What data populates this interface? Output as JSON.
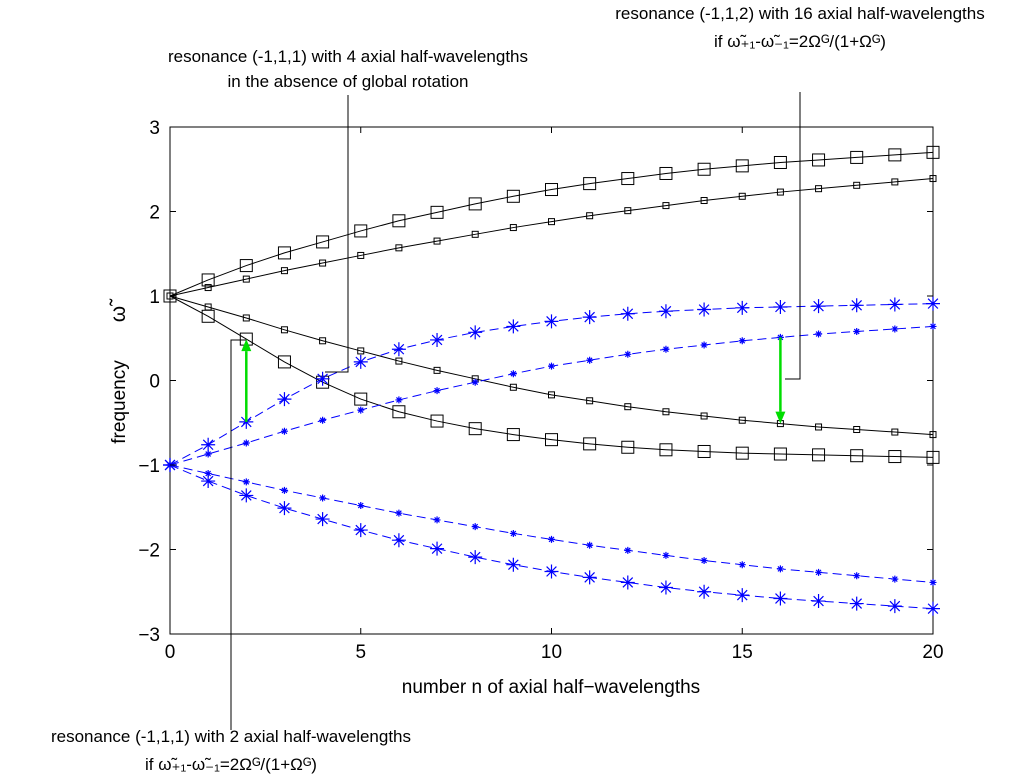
{
  "chart_data": {
    "type": "line",
    "title": "",
    "xlabel": "number n of axial half−wavelengths",
    "ylabel": "frequency",
    "ylabel_symbol": "ω̃",
    "xlim": [
      0,
      20
    ],
    "ylim": [
      -3,
      3
    ],
    "xticks": [
      "0",
      "5",
      "10",
      "15",
      "20"
    ],
    "yticks": [
      "−3",
      "−2",
      "−1",
      "0",
      "1",
      "2",
      "3"
    ],
    "grid": false,
    "legend": "none",
    "x": [
      0,
      1,
      2,
      3,
      4,
      5,
      6,
      7,
      8,
      9,
      10,
      11,
      12,
      13,
      14,
      15,
      16,
      17,
      18,
      19,
      20
    ],
    "series": [
      {
        "color": "#000000",
        "marker": "square-large",
        "line": "solid",
        "values": [
          1.0,
          1.19,
          1.36,
          1.51,
          1.64,
          1.77,
          1.89,
          1.99,
          2.09,
          2.18,
          2.26,
          2.33,
          2.39,
          2.45,
          2.5,
          2.54,
          2.58,
          2.61,
          2.64,
          2.67,
          2.7
        ]
      },
      {
        "color": "#000000",
        "marker": "square-small",
        "line": "solid",
        "values": [
          1.0,
          1.1,
          1.2,
          1.3,
          1.39,
          1.48,
          1.57,
          1.65,
          1.73,
          1.81,
          1.88,
          1.95,
          2.01,
          2.07,
          2.13,
          2.18,
          2.23,
          2.27,
          2.31,
          2.35,
          2.39
        ]
      },
      {
        "color": "#000000",
        "marker": "square-large",
        "line": "solid",
        "values": [
          1.0,
          0.76,
          0.49,
          0.22,
          -0.02,
          -0.22,
          -0.37,
          -0.48,
          -0.57,
          -0.64,
          -0.7,
          -0.75,
          -0.79,
          -0.82,
          -0.84,
          -0.86,
          -0.87,
          -0.88,
          -0.89,
          -0.9,
          -0.91
        ]
      },
      {
        "color": "#000000",
        "marker": "square-small",
        "line": "solid",
        "values": [
          1.0,
          0.87,
          0.74,
          0.6,
          0.47,
          0.35,
          0.23,
          0.12,
          0.02,
          -0.08,
          -0.17,
          -0.24,
          -0.31,
          -0.37,
          -0.42,
          -0.47,
          -0.51,
          -0.55,
          -0.58,
          -0.61,
          -0.64
        ]
      },
      {
        "color": "#0000ff",
        "marker": "star-large",
        "line": "dashed",
        "values": [
          -1.0,
          -0.76,
          -0.49,
          -0.22,
          0.02,
          0.22,
          0.37,
          0.48,
          0.57,
          0.64,
          0.7,
          0.75,
          0.79,
          0.82,
          0.84,
          0.86,
          0.87,
          0.88,
          0.89,
          0.9,
          0.91
        ]
      },
      {
        "color": "#0000ff",
        "marker": "star-small",
        "line": "dashed",
        "values": [
          -1.0,
          -0.87,
          -0.74,
          -0.6,
          -0.47,
          -0.35,
          -0.23,
          -0.12,
          -0.02,
          0.08,
          0.17,
          0.24,
          0.31,
          0.37,
          0.42,
          0.47,
          0.51,
          0.55,
          0.58,
          0.61,
          0.64
        ]
      },
      {
        "color": "#0000ff",
        "marker": "star-large",
        "line": "dashed",
        "values": [
          -1.0,
          -1.19,
          -1.36,
          -1.51,
          -1.64,
          -1.77,
          -1.89,
          -1.99,
          -2.09,
          -2.18,
          -2.26,
          -2.33,
          -2.39,
          -2.45,
          -2.5,
          -2.54,
          -2.58,
          -2.61,
          -2.64,
          -2.67,
          -2.7
        ]
      },
      {
        "color": "#0000ff",
        "marker": "star-small",
        "line": "dashed",
        "values": [
          -1.0,
          -1.1,
          -1.2,
          -1.3,
          -1.39,
          -1.48,
          -1.57,
          -1.65,
          -1.73,
          -1.81,
          -1.88,
          -1.95,
          -2.01,
          -2.07,
          -2.13,
          -2.18,
          -2.23,
          -2.27,
          -2.31,
          -2.35,
          -2.39
        ]
      }
    ],
    "arrows": [
      {
        "color": "#00dd00",
        "x": 2,
        "from": -0.49,
        "to": 0.49
      },
      {
        "color": "#00dd00",
        "x": 16,
        "from": 0.51,
        "to": -0.51
      }
    ],
    "annotations": [
      {
        "id": "top-right",
        "lines": [
          "resonance (-1,1,2) with 16 axial half-wavelengths",
          "if ω̃₊₁-ω̃₋₁=2Ωᴳ/(1+Ωᴳ)"
        ]
      },
      {
        "id": "top-left",
        "lines": [
          "resonance (-1,1,1) with 4 axial half-wavelengths",
          "in the absence of global rotation"
        ]
      },
      {
        "id": "bottom",
        "lines": [
          "resonance (-1,1,1) with 2 axial half-wavelengths",
          "if ω̃₊₁-ω̃₋₁=2Ωᴳ/(1+Ωᴳ)"
        ]
      }
    ]
  }
}
